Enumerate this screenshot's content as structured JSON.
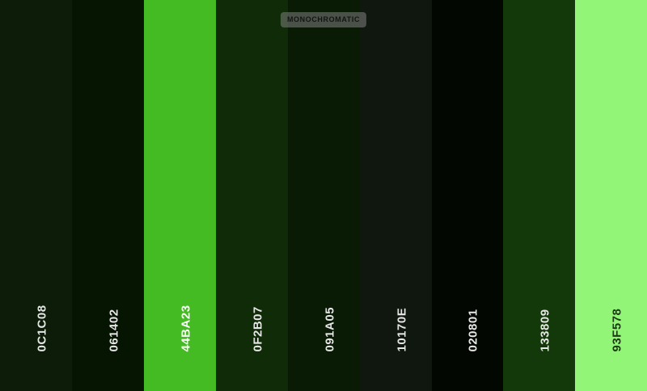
{
  "badge": {
    "label": "MONOCHROMATIC"
  },
  "swatches": [
    {
      "hex": "0C1C08",
      "color": "#0C1C08",
      "text_color": "#E6E6E6"
    },
    {
      "hex": "061402",
      "color": "#061402",
      "text_color": "#E6E6E6"
    },
    {
      "hex": "44BA23",
      "color": "#44BA23",
      "text_color": "#FFFFFF"
    },
    {
      "hex": "0F2B07",
      "color": "#0F2B07",
      "text_color": "#E6E6E6"
    },
    {
      "hex": "091A05",
      "color": "#091A05",
      "text_color": "#E6E6E6"
    },
    {
      "hex": "10170E",
      "color": "#10170E",
      "text_color": "#E6E6E6"
    },
    {
      "hex": "020801",
      "color": "#020801",
      "text_color": "#E6E6E6"
    },
    {
      "hex": "133809",
      "color": "#133809",
      "text_color": "#E6E6E6"
    },
    {
      "hex": "93F578",
      "color": "#93F578",
      "text_color": "#1A3A10"
    }
  ]
}
